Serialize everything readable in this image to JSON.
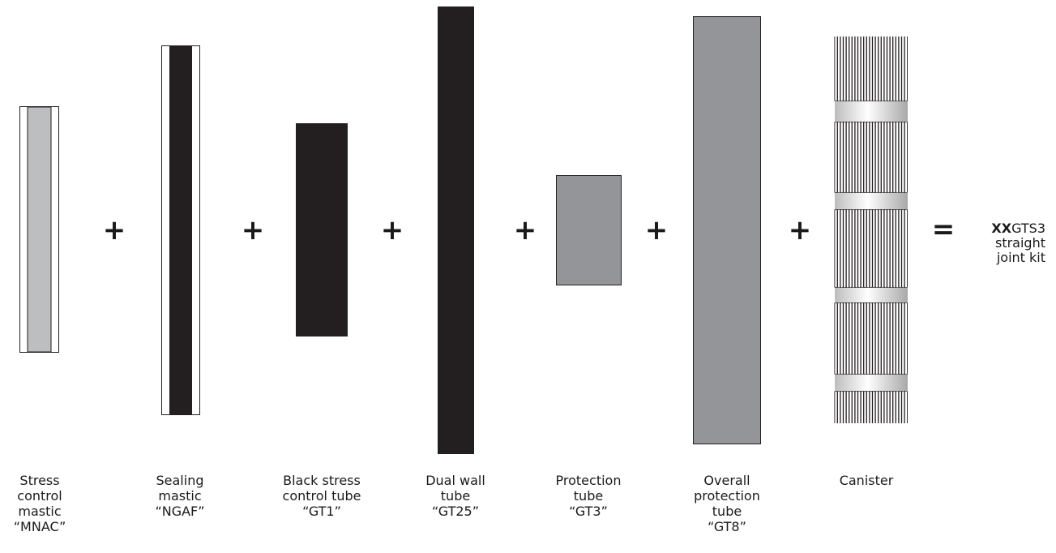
{
  "components": [
    {
      "label_lines": [
        "Stress",
        "control",
        "mastic",
        "“MNAC”"
      ]
    },
    {
      "label_lines": [
        "Sealing",
        "mastic",
        "“NGAF”"
      ]
    },
    {
      "label_lines": [
        "Black stress",
        "control tube",
        "“GT1”"
      ]
    },
    {
      "label_lines": [
        "Dual wall",
        "tube",
        "“GT25”"
      ]
    },
    {
      "label_lines": [
        "Protection",
        "tube",
        "“GT3”"
      ]
    },
    {
      "label_lines": [
        "Overall",
        "protection",
        "tube",
        "“GT8”"
      ]
    },
    {
      "label_lines": [
        "Canister"
      ]
    }
  ],
  "operators": [
    "+",
    "+",
    "+",
    "+",
    "+",
    "+",
    "="
  ],
  "result": {
    "code_bold": "XX",
    "code_rest": "GTS3",
    "line2": "straight",
    "line3": "joint kit"
  },
  "colors": {
    "black": "#231f20",
    "grey": "#939598",
    "light_grey": "#bcbec0"
  }
}
